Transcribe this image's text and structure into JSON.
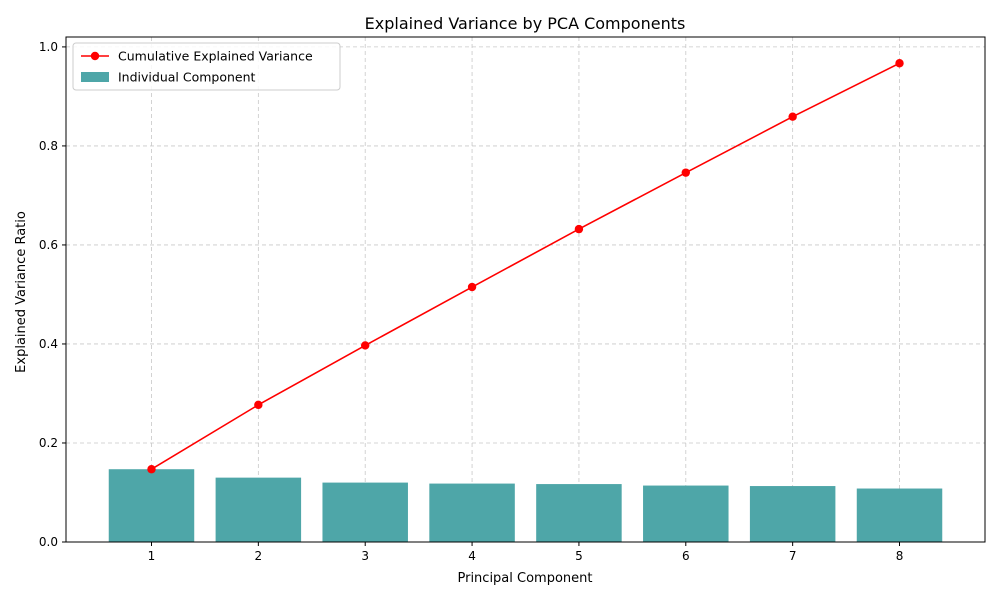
{
  "chart_data": {
    "type": "bar",
    "title": "Explained Variance by PCA Components",
    "xlabel": "Principal Component",
    "ylabel": "Explained Variance Ratio",
    "categories": [
      "1",
      "2",
      "3",
      "4",
      "5",
      "6",
      "7",
      "8"
    ],
    "ylim": [
      0,
      1.02
    ],
    "yticks": [
      "0.0",
      "0.2",
      "0.4",
      "0.6",
      "0.8",
      "1.0"
    ],
    "grid": true,
    "legend_position": "top-left",
    "series": [
      {
        "name": "Cumulative Explained Variance",
        "type": "line",
        "color": "#ff0000",
        "values": [
          0.147,
          0.277,
          0.397,
          0.515,
          0.632,
          0.746,
          0.859,
          0.967
        ]
      },
      {
        "name": "Individual Component",
        "type": "bar",
        "color": "#4ea6a8",
        "values": [
          0.147,
          0.13,
          0.12,
          0.118,
          0.117,
          0.114,
          0.113,
          0.108
        ]
      }
    ]
  }
}
